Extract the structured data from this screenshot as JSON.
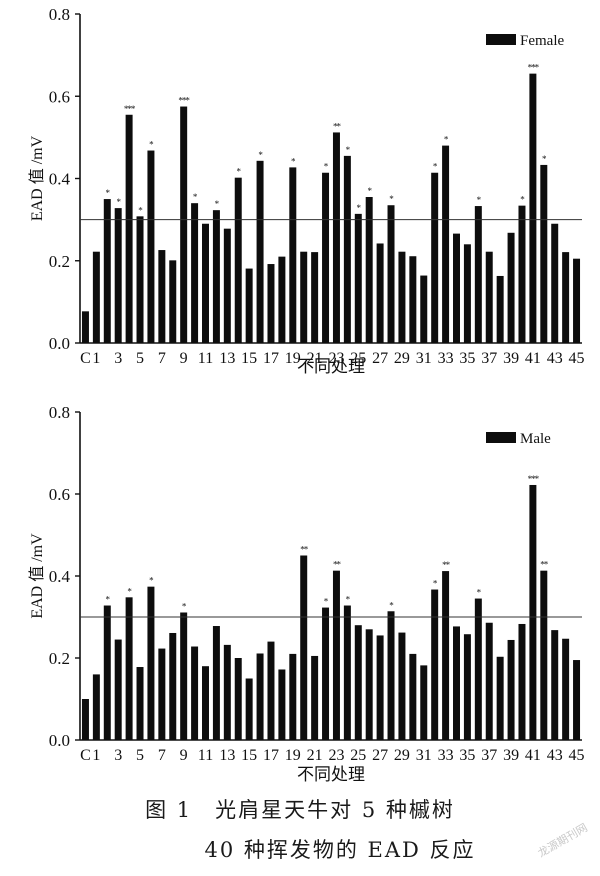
{
  "chart_data": [
    {
      "type": "bar",
      "legend": "Female",
      "legend_position": "top-right",
      "ylabel": "EAD 值 /mV",
      "xlabel": "不同处理",
      "ylim": [
        0,
        0.8
      ],
      "yticks": [
        "0.0",
        "0.2",
        "0.4",
        "0.6",
        "0.8"
      ],
      "xticks": [
        "C",
        "1",
        "3",
        "5",
        "7",
        "9",
        "11",
        "13",
        "15",
        "17",
        "19",
        "21",
        "23",
        "25",
        "27",
        "29",
        "31",
        "33",
        "35",
        "37",
        "39",
        "41",
        "43",
        "45"
      ],
      "reference_line": 0.3,
      "categories": [
        "C",
        "1",
        "2",
        "3",
        "4",
        "5",
        "6",
        "7",
        "8",
        "9",
        "10",
        "11",
        "12",
        "13",
        "14",
        "15",
        "16",
        "17",
        "18",
        "19",
        "20",
        "21",
        "22",
        "23",
        "24",
        "25",
        "26",
        "27",
        "28",
        "29",
        "30",
        "31",
        "32",
        "33",
        "34",
        "35",
        "36",
        "37",
        "38",
        "39",
        "40",
        "41",
        "42",
        "43",
        "44",
        "45"
      ],
      "values": [
        0.077,
        0.222,
        0.35,
        0.328,
        0.555,
        0.308,
        0.468,
        0.226,
        0.201,
        0.575,
        0.34,
        0.29,
        0.323,
        0.278,
        0.402,
        0.181,
        0.443,
        0.192,
        0.21,
        0.427,
        0.222,
        0.221,
        0.414,
        0.512,
        0.455,
        0.314,
        0.355,
        0.242,
        0.335,
        0.222,
        0.211,
        0.164,
        0.414,
        0.48,
        0.266,
        0.24,
        0.333,
        0.222,
        0.163,
        0.268,
        0.334,
        0.655,
        0.433,
        0.29,
        0.221,
        0.205
      ],
      "significance": [
        "",
        "",
        "*",
        "*",
        "***",
        "*",
        "*",
        "",
        "",
        "***",
        "*",
        "",
        "*",
        "",
        "*",
        "",
        "*",
        "",
        "",
        "*",
        "",
        "",
        "*",
        "**",
        "*",
        "*",
        "*",
        "",
        "*",
        "",
        "",
        "",
        "*",
        "*",
        "",
        "",
        "*",
        "",
        "",
        "",
        "*",
        "***",
        "*",
        "",
        "",
        ""
      ]
    },
    {
      "type": "bar",
      "legend": "Male",
      "legend_position": "top-right",
      "ylabel": "EAD 值 /mV",
      "xlabel": "不同处理",
      "ylim": [
        0,
        0.8
      ],
      "yticks": [
        "0.0",
        "0.2",
        "0.4",
        "0.6",
        "0.8"
      ],
      "xticks": [
        "C",
        "1",
        "3",
        "5",
        "7",
        "9",
        "11",
        "13",
        "15",
        "17",
        "19",
        "21",
        "23",
        "25",
        "27",
        "29",
        "31",
        "33",
        "35",
        "37",
        "39",
        "41",
        "43",
        "45"
      ],
      "reference_line": 0.3,
      "categories": [
        "C",
        "1",
        "2",
        "3",
        "4",
        "5",
        "6",
        "7",
        "8",
        "9",
        "10",
        "11",
        "12",
        "13",
        "14",
        "15",
        "16",
        "17",
        "18",
        "19",
        "20",
        "21",
        "22",
        "23",
        "24",
        "25",
        "26",
        "27",
        "28",
        "29",
        "30",
        "31",
        "32",
        "33",
        "34",
        "35",
        "36",
        "37",
        "38",
        "39",
        "40",
        "41",
        "42",
        "43",
        "44",
        "45"
      ],
      "values": [
        0.1,
        0.16,
        0.328,
        0.245,
        0.348,
        0.178,
        0.374,
        0.223,
        0.261,
        0.311,
        0.228,
        0.18,
        0.278,
        0.232,
        0.2,
        0.15,
        0.211,
        0.24,
        0.172,
        0.21,
        0.45,
        0.205,
        0.323,
        0.413,
        0.328,
        0.28,
        0.27,
        0.255,
        0.314,
        0.262,
        0.21,
        0.182,
        0.367,
        0.412,
        0.277,
        0.258,
        0.345,
        0.286,
        0.203,
        0.244,
        0.283,
        0.622,
        0.413,
        0.268,
        0.247,
        0.195
      ],
      "significance": [
        "",
        "",
        "*",
        "",
        "*",
        "",
        "*",
        "",
        "",
        "*",
        "",
        "",
        "",
        "",
        "",
        "",
        "",
        "",
        "",
        "",
        "**",
        "",
        "*",
        "**",
        "*",
        "",
        "",
        "",
        "*",
        "",
        "",
        "",
        "*",
        "**",
        "",
        "",
        "*",
        "",
        "",
        "",
        "",
        "***",
        "**",
        "",
        "",
        ""
      ]
    }
  ],
  "caption": {
    "line1": "图 1　光肩星天牛对 5 种槭树",
    "line2": "40 种挥发物的 EAD 反应"
  },
  "watermark": "龙源期刊网"
}
